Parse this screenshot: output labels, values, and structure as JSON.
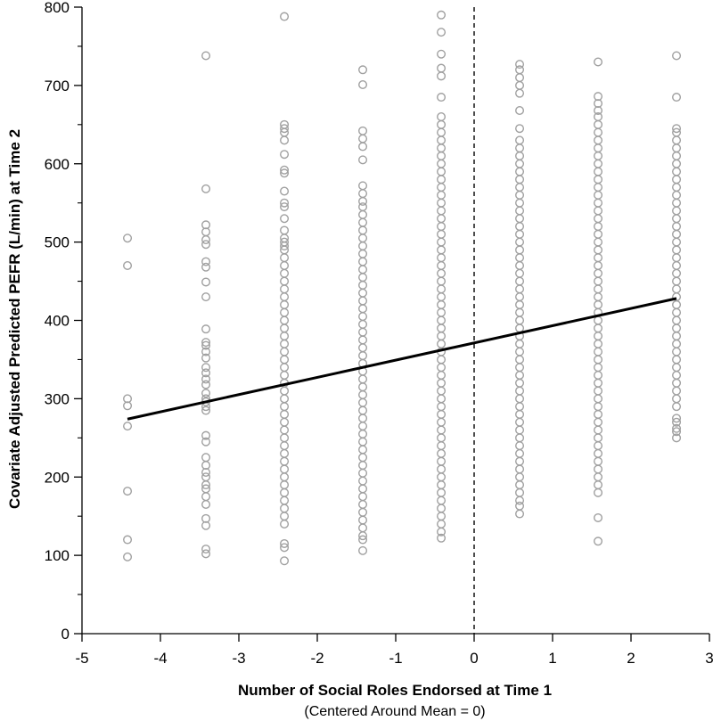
{
  "chart_data": {
    "type": "scatter",
    "title": "",
    "xlabel": "Number of Social Roles Endorsed at Time 1",
    "xlabel_sub": "(Centered Around Mean = 0)",
    "ylabel": "Covariate Adjusted Predicted PEFR (L/min) at Time 2",
    "xlim": [
      -5,
      3
    ],
    "ylim": [
      0,
      800
    ],
    "xticks": [
      "-5",
      "-4",
      "-3",
      "-2",
      "-1",
      "0",
      "1",
      "2",
      "3"
    ],
    "yticks": [
      "0",
      "100",
      "200",
      "300",
      "400",
      "500",
      "600",
      "700",
      "800"
    ],
    "marker_color": "#a0a0a0",
    "line_color": "#000000",
    "reference_line": {
      "x": 0,
      "style": "dashed"
    },
    "grid": false,
    "series": [
      {
        "x": -4.42,
        "y": [
          505,
          470,
          300,
          291,
          265,
          182,
          120,
          98
        ]
      },
      {
        "x": -3.42,
        "y": [
          738,
          568,
          522,
          513,
          503,
          497,
          475,
          468,
          449,
          430,
          389,
          372,
          368,
          360,
          352,
          340,
          333,
          325,
          318,
          307,
          300,
          296,
          290,
          285,
          253,
          245,
          225,
          215,
          206,
          200,
          190,
          185,
          175,
          165,
          147,
          138,
          108,
          102
        ]
      },
      {
        "x": -2.42,
        "y": [
          788,
          650,
          645,
          640,
          630,
          612,
          592,
          588,
          565,
          550,
          545,
          530,
          515,
          505,
          500,
          495,
          490,
          480,
          470,
          460,
          450,
          440,
          430,
          420,
          410,
          400,
          390,
          380,
          370,
          360,
          350,
          340,
          330,
          320,
          310,
          300,
          290,
          280,
          270,
          260,
          250,
          240,
          230,
          220,
          210,
          200,
          190,
          180,
          170,
          160,
          150,
          140,
          115,
          110,
          93
        ]
      },
      {
        "x": -1.42,
        "y": [
          720,
          701,
          642,
          632,
          622,
          605,
          572,
          562,
          552,
          545,
          535,
          525,
          515,
          505,
          495,
          485,
          475,
          465,
          455,
          445,
          435,
          425,
          415,
          405,
          395,
          385,
          375,
          365,
          355,
          345,
          335,
          325,
          315,
          305,
          295,
          285,
          275,
          265,
          255,
          245,
          235,
          225,
          215,
          205,
          195,
          185,
          175,
          165,
          155,
          145,
          135,
          125,
          120,
          106
        ]
      },
      {
        "x": -0.42,
        "y": [
          790,
          768,
          740,
          722,
          712,
          685,
          660,
          650,
          640,
          630,
          620,
          610,
          600,
          590,
          580,
          570,
          560,
          550,
          540,
          530,
          520,
          510,
          500,
          490,
          480,
          470,
          460,
          450,
          440,
          430,
          420,
          410,
          400,
          390,
          380,
          370,
          360,
          350,
          340,
          330,
          320,
          310,
          300,
          290,
          280,
          270,
          260,
          250,
          240,
          230,
          220,
          210,
          200,
          190,
          180,
          170,
          160,
          150,
          140,
          130,
          122
        ]
      },
      {
        "x": 0.58,
        "y": [
          727,
          720,
          710,
          700,
          690,
          668,
          645,
          630,
          620,
          610,
          600,
          590,
          580,
          570,
          560,
          550,
          540,
          530,
          520,
          510,
          500,
          490,
          480,
          470,
          460,
          450,
          440,
          430,
          420,
          410,
          400,
          390,
          380,
          370,
          360,
          350,
          340,
          330,
          320,
          310,
          300,
          290,
          280,
          270,
          260,
          250,
          240,
          230,
          220,
          210,
          200,
          190,
          180,
          170,
          163,
          153
        ]
      },
      {
        "x": 1.58,
        "y": [
          730,
          686,
          677,
          668,
          660,
          650,
          640,
          630,
          620,
          610,
          600,
          590,
          580,
          570,
          560,
          550,
          540,
          530,
          520,
          510,
          500,
          490,
          480,
          470,
          460,
          450,
          440,
          430,
          420,
          410,
          400,
          390,
          380,
          370,
          360,
          350,
          340,
          330,
          320,
          310,
          300,
          290,
          280,
          270,
          260,
          250,
          240,
          230,
          220,
          210,
          200,
          190,
          180,
          148,
          118
        ]
      },
      {
        "x": 2.58,
        "y": [
          738,
          685,
          645,
          640,
          630,
          620,
          610,
          600,
          590,
          580,
          570,
          560,
          550,
          540,
          530,
          520,
          510,
          500,
          490,
          480,
          470,
          460,
          450,
          440,
          430,
          420,
          410,
          400,
          390,
          380,
          370,
          360,
          350,
          340,
          330,
          320,
          310,
          300,
          290,
          275,
          270,
          262,
          258,
          250
        ]
      }
    ],
    "trend_line": {
      "x": [
        -4.42,
        2.58
      ],
      "y": [
        274,
        428
      ]
    }
  }
}
